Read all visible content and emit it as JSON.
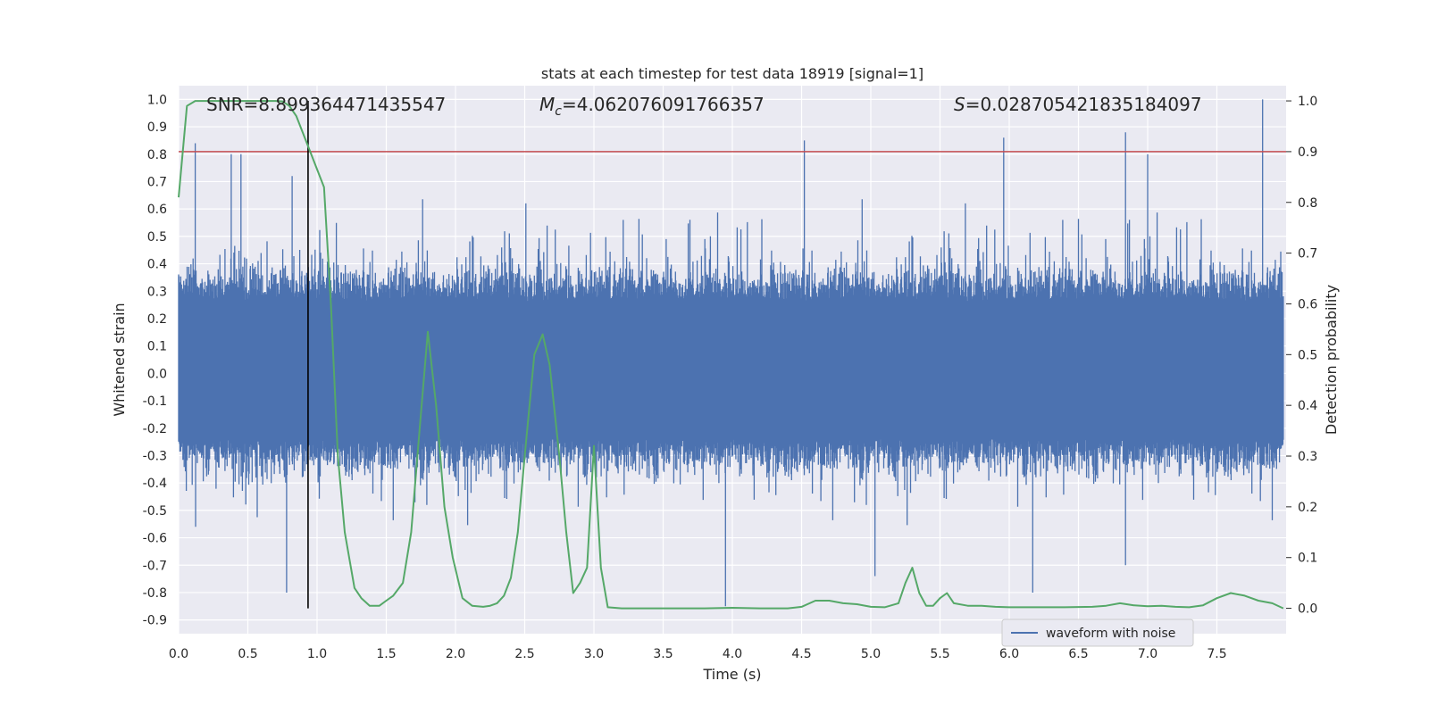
{
  "chart_data": {
    "type": "line",
    "title": "stats at each timestep for test data 18919 [signal=1]",
    "xlabel": "Time (s)",
    "ylabel": "Whitened strain",
    "y2label": "Detection probability",
    "xlim": [
      0.0,
      8.0
    ],
    "ylim": [
      -0.95,
      1.05
    ],
    "y2lim": [
      -0.05,
      1.03
    ],
    "xticks": [
      "0.0",
      "0.5",
      "1.0",
      "1.5",
      "2.0",
      "2.5",
      "3.0",
      "3.5",
      "4.0",
      "4.5",
      "5.0",
      "5.5",
      "6.0",
      "6.5",
      "7.0",
      "7.5"
    ],
    "yticks": [
      "1.0",
      "0.9",
      "0.8",
      "0.7",
      "0.6",
      "0.5",
      "0.4",
      "0.3",
      "0.2",
      "0.1",
      "0.0",
      "-0.1",
      "-0.2",
      "-0.3",
      "-0.4",
      "-0.5",
      "-0.6",
      "-0.7",
      "-0.8",
      "-0.9"
    ],
    "y2ticks": [
      "1.0",
      "0.9",
      "0.8",
      "0.7",
      "0.6",
      "0.5",
      "0.4",
      "0.3",
      "0.2",
      "0.1",
      "0.0"
    ],
    "grid": true,
    "legend_placement": "lower-right",
    "annotations": {
      "snr": "SNR=8.899364471435547",
      "mc_symbol": "M",
      "mc_sub": "c",
      "mc_value": "=4.062076091766357",
      "s_symbol": "S",
      "s_value": "=0.028705421835184097"
    },
    "series": [
      {
        "name": "waveform with noise",
        "axis": "left",
        "color": "#4c72b0",
        "sample_rate_note": "dense noise spanning roughly -0.5 to 0.6 with occasional spikes",
        "peaks": [
          {
            "x": 0.12,
            "y": 0.84
          },
          {
            "x": 0.38,
            "y": 0.8
          },
          {
            "x": 0.45,
            "y": 0.8
          },
          {
            "x": 0.82,
            "y": 0.72
          },
          {
            "x": 4.52,
            "y": 0.85
          },
          {
            "x": 5.96,
            "y": 0.86
          },
          {
            "x": 6.84,
            "y": 0.88
          },
          {
            "x": 7.0,
            "y": 0.8
          },
          {
            "x": 7.83,
            "y": 1.0
          },
          {
            "x": 0.78,
            "y": -0.8
          },
          {
            "x": 3.95,
            "y": -0.85
          },
          {
            "x": 6.17,
            "y": -0.8
          },
          {
            "x": 6.84,
            "y": -0.7
          },
          {
            "x": 5.03,
            "y": -0.74
          }
        ]
      },
      {
        "name": "",
        "axis": "right",
        "color": "#55a868",
        "x": [
          0.0,
          0.06,
          0.12,
          0.2,
          0.3,
          0.4,
          0.5,
          0.6,
          0.7,
          0.75,
          0.8,
          0.85,
          0.95,
          1.05,
          1.1,
          1.15,
          1.2,
          1.27,
          1.32,
          1.38,
          1.45,
          1.5,
          1.55,
          1.62,
          1.68,
          1.74,
          1.8,
          1.86,
          1.92,
          1.98,
          2.05,
          2.12,
          2.2,
          2.25,
          2.3,
          2.35,
          2.4,
          2.45,
          2.5,
          2.57,
          2.63,
          2.68,
          2.75,
          2.8,
          2.85,
          2.9,
          2.95,
          3.0,
          3.05,
          3.1,
          3.2,
          3.4,
          3.6,
          3.8,
          4.0,
          4.2,
          4.4,
          4.5,
          4.6,
          4.7,
          4.8,
          4.9,
          5.0,
          5.1,
          5.2,
          5.25,
          5.3,
          5.35,
          5.4,
          5.45,
          5.5,
          5.55,
          5.6,
          5.7,
          5.8,
          5.9,
          6.0,
          6.2,
          6.4,
          6.6,
          6.7,
          6.8,
          6.9,
          7.0,
          7.1,
          7.2,
          7.3,
          7.4,
          7.5,
          7.6,
          7.7,
          7.8,
          7.9,
          7.98
        ],
        "y": [
          0.81,
          0.99,
          1.0,
          1.0,
          1.0,
          1.0,
          1.0,
          1.0,
          1.0,
          0.999,
          0.99,
          0.97,
          0.9,
          0.83,
          0.6,
          0.3,
          0.15,
          0.04,
          0.02,
          0.005,
          0.005,
          0.015,
          0.025,
          0.05,
          0.15,
          0.35,
          0.545,
          0.4,
          0.2,
          0.1,
          0.02,
          0.005,
          0.003,
          0.005,
          0.01,
          0.025,
          0.06,
          0.15,
          0.3,
          0.5,
          0.54,
          0.48,
          0.3,
          0.15,
          0.03,
          0.05,
          0.08,
          0.32,
          0.08,
          0.002,
          0.0,
          0.0,
          0.0,
          0.0,
          0.001,
          0.0,
          0.0,
          0.003,
          0.015,
          0.015,
          0.01,
          0.008,
          0.003,
          0.002,
          0.01,
          0.05,
          0.08,
          0.03,
          0.005,
          0.005,
          0.02,
          0.03,
          0.01,
          0.005,
          0.005,
          0.003,
          0.002,
          0.002,
          0.002,
          0.003,
          0.005,
          0.01,
          0.006,
          0.004,
          0.005,
          0.003,
          0.002,
          0.006,
          0.02,
          0.03,
          0.025,
          0.015,
          0.01,
          0.0
        ]
      }
    ],
    "threshold": {
      "axis": "right",
      "y": 0.9,
      "color": "#c44e52"
    },
    "vline": {
      "x": 0.935,
      "color": "#000000"
    }
  }
}
